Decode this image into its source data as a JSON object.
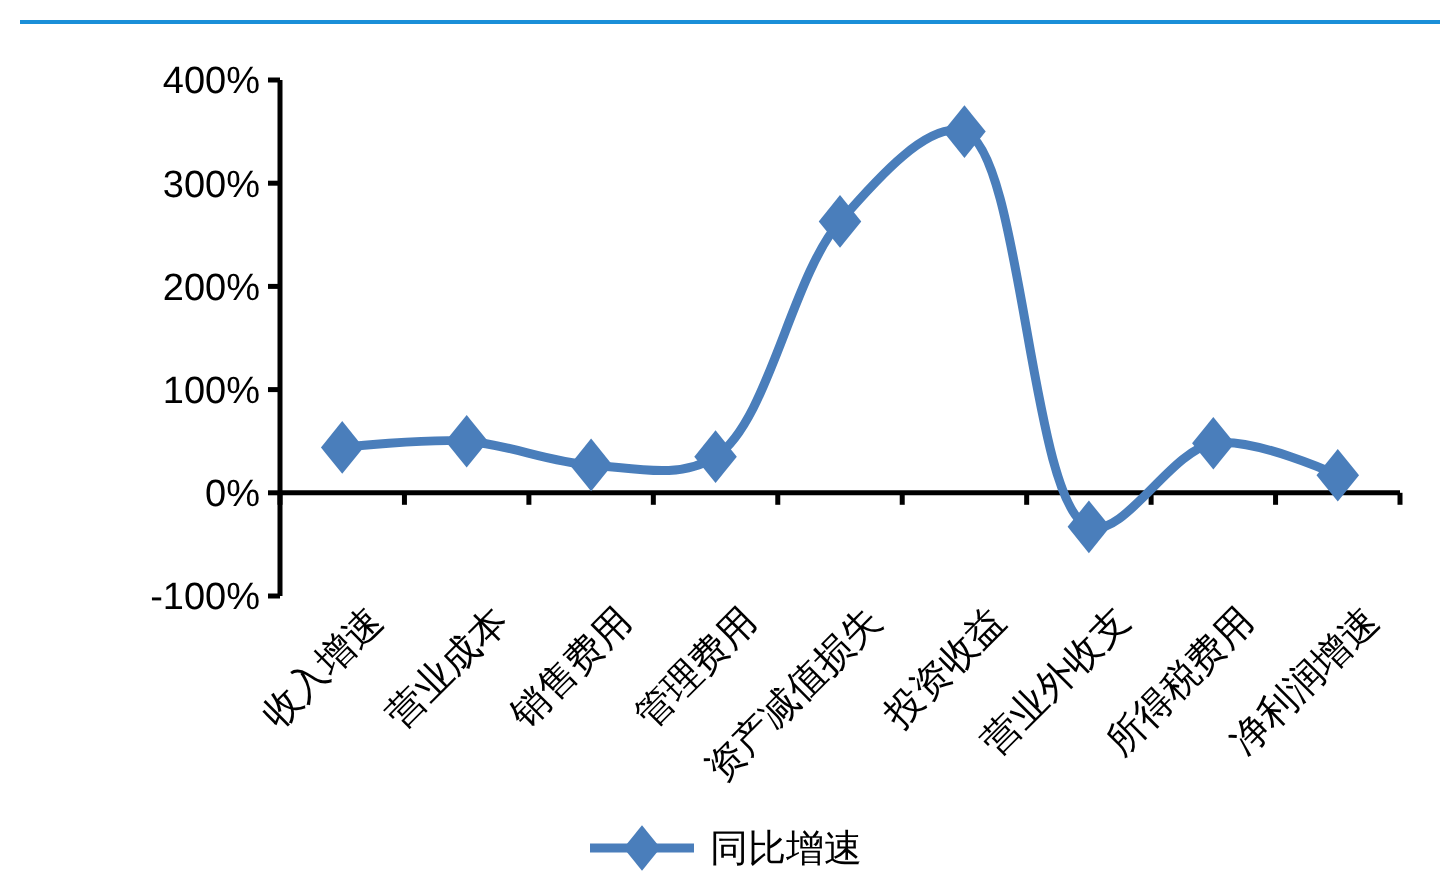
{
  "chart_data": {
    "type": "line",
    "categories": [
      "收入增速",
      "营业成本",
      "销售费用",
      "管理费用",
      "资产减值损失",
      "投资收益",
      "营业外收支",
      "所得税费用",
      "净利润增速"
    ],
    "series": [
      {
        "name": "同比增速",
        "color": "#4a7ebb",
        "values": [
          44,
          50,
          27,
          35,
          263,
          350,
          -33,
          48,
          17
        ]
      }
    ],
    "ylim": [
      -100,
      400
    ],
    "yticks": [
      {
        "value": -100,
        "label": "-100%"
      },
      {
        "value": 0,
        "label": "0%"
      },
      {
        "value": 100,
        "label": "100%"
      },
      {
        "value": 200,
        "label": "200%"
      },
      {
        "value": 300,
        "label": "300%"
      },
      {
        "value": 400,
        "label": "400%"
      }
    ],
    "legend": "bottom",
    "marker": "diamond",
    "line_style": "solid"
  }
}
